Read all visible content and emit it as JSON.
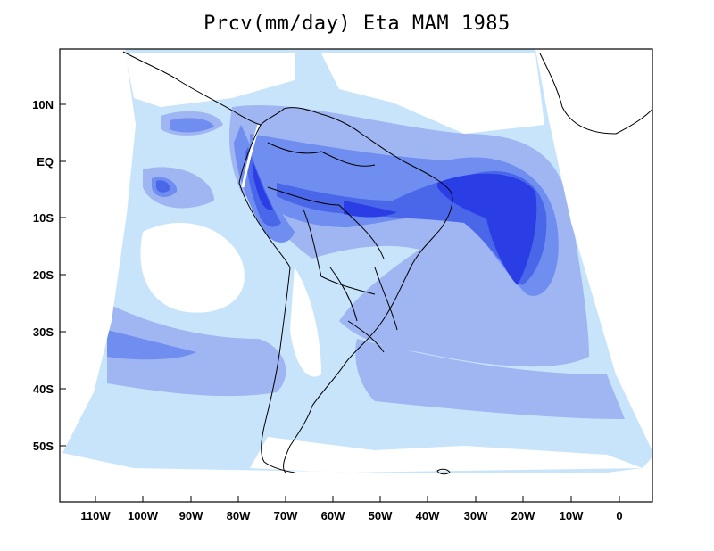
{
  "title": "Prcv(mm/day) Eta MAM 1985",
  "colors": {
    "frame": "#000000",
    "background": "#ffffff",
    "precip_level_1": "#c8e4fb",
    "precip_level_2": "#9fb6f2",
    "precip_level_3": "#6f8ef0",
    "precip_level_4": "#4a67ea",
    "precip_level_5": "#2b3ee6",
    "coastline": "#000000"
  },
  "map": {
    "variable": "Prcv",
    "units": "mm/day",
    "model": "Eta",
    "season": "MAM",
    "year": "1985",
    "lat_labels": [
      "10N",
      "EQ",
      "10S",
      "20S",
      "30S",
      "40S",
      "50S"
    ],
    "lon_labels": [
      "110W",
      "100W",
      "90W",
      "80W",
      "70W",
      "60W",
      "50W",
      "40W",
      "30W",
      "20W",
      "10W",
      "0"
    ]
  }
}
